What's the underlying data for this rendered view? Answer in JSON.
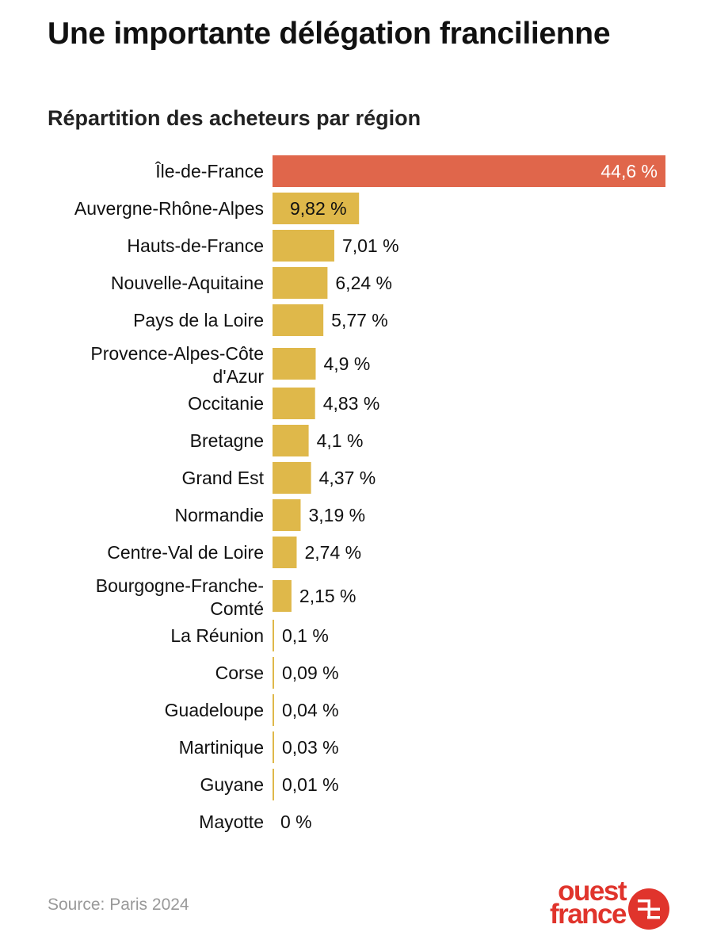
{
  "title": "Une importante délégation francilienne",
  "subtitle": "Répartition des acheteurs par région",
  "source": "Source: Paris 2024",
  "logo": {
    "line1": "ouest",
    "line2": "france"
  },
  "colors": {
    "highlight": "#e0664b",
    "bar": "#dfb84a",
    "text": "#111111",
    "label_on_highlight": "#ffffff",
    "source": "#999999",
    "brand": "#e0342c"
  },
  "chart_data": {
    "type": "bar",
    "orientation": "horizontal",
    "categories": [
      "Île-de-France",
      "Auvergne-Rhône-Alpes",
      "Hauts-de-France",
      "Nouvelle-Aquitaine",
      "Pays de la Loire",
      "Provence-Alpes-Côte d'Azur",
      "Occitanie",
      "Bretagne",
      "Grand Est",
      "Normandie",
      "Centre-Val de Loire",
      "Bourgogne-Franche-Comté",
      "La Réunion",
      "Corse",
      "Guadeloupe",
      "Martinique",
      "Guyane",
      "Mayotte"
    ],
    "values": [
      44.6,
      9.82,
      7.01,
      6.24,
      5.77,
      4.9,
      4.83,
      4.1,
      4.37,
      3.19,
      2.74,
      2.15,
      0.1,
      0.09,
      0.04,
      0.03,
      0.01,
      0
    ],
    "value_labels": [
      "44,6 %",
      "9,82 %",
      "7,01 %",
      "6,24 %",
      "5,77 %",
      "4,9 %",
      "4,83 %",
      "4,1 %",
      "4,37 %",
      "3,19 %",
      "2,74 %",
      "2,15 %",
      "0,1 %",
      "0,09 %",
      "0,04 %",
      "0,03 %",
      "0,01 %",
      "0 %"
    ],
    "highlight_index": 0,
    "xlim": [
      0,
      44.6
    ],
    "unit": "%",
    "grid": false,
    "legend": "none"
  }
}
